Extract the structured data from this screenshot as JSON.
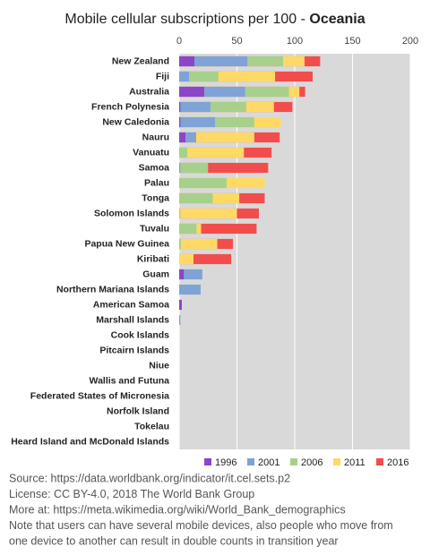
{
  "chart_data": {
    "type": "bar",
    "orientation": "horizontal",
    "overlap": true,
    "title": "Mobile cellular subscriptions per 100 - ",
    "title_bold": "Oceania",
    "categories": [
      "New Zealand",
      "Fiji",
      "Australia",
      "French Polynesia",
      "New Caledonia",
      "Nauru",
      "Vanuatu",
      "Samoa",
      "Palau",
      "Tonga",
      "Solomon Islands",
      "Tuvalu",
      "Papua New Guinea",
      "Kiribati",
      "Guam",
      "Northern Mariana Islands",
      "American Samoa",
      "Marshall Islands",
      "Cook Islands",
      "Pitcairn Islands",
      "Niue",
      "Wallis and Futuna",
      "Federated States of Micronesia",
      "Norfolk Island",
      "Tokelau",
      "Heard Island and McDonald Islands"
    ],
    "series": [
      {
        "name": "1996",
        "color": "#8c45c7",
        "values": [
          13.2,
          null,
          21.7,
          1,
          1,
          5.4,
          null,
          null,
          null,
          null,
          null,
          null,
          null,
          null,
          4,
          null,
          2.3,
          null,
          null,
          null,
          null,
          null,
          null,
          null,
          null,
          null
        ]
      },
      {
        "name": "2001",
        "color": "#7fa3d6",
        "values": [
          59,
          8.5,
          57,
          27,
          31,
          14.7,
          null,
          1,
          null,
          null,
          null,
          null,
          null,
          null,
          20,
          18.6,
          null,
          1,
          null,
          null,
          null,
          null,
          null,
          null,
          null,
          null
        ]
      },
      {
        "name": "2006",
        "color": "#a7d08c",
        "values": [
          90,
          34,
          95,
          58,
          65,
          null,
          7,
          25,
          41,
          29,
          1,
          15,
          1.5,
          null,
          null,
          null,
          null,
          null,
          null,
          null,
          null,
          null,
          null,
          null,
          null,
          null
        ]
      },
      {
        "name": "2011",
        "color": "#ffd966",
        "values": [
          108.5,
          83,
          104,
          82,
          88,
          65,
          56,
          null,
          74,
          52,
          50,
          19,
          33,
          12.4,
          null,
          null,
          null,
          null,
          null,
          null,
          null,
          null,
          null,
          null,
          null,
          null
        ]
      },
      {
        "name": "2016",
        "color": "#f24d4d",
        "values": [
          122,
          115.5,
          109,
          98,
          null,
          87,
          80,
          77,
          null,
          74,
          69,
          67,
          46.5,
          45,
          null,
          null,
          null,
          null,
          null,
          null,
          null,
          null,
          null,
          null,
          null,
          null
        ]
      }
    ],
    "xlim": [
      0,
      200
    ],
    "xticks": [
      0,
      50,
      100,
      150,
      200
    ],
    "grid": true,
    "legend": "bottom",
    "notes": [
      "Source: https://data.worldbank.org/indicator/it.cel.sets.p2",
      "License: CC BY-4.0,  2018  The World Bank Group",
      "More at: https://meta.wikimedia.org/wiki/World_Bank_demographics",
      "Note that users can have several mobile devices, also people who move from",
      "one device to another can result in double counts in transition year"
    ]
  }
}
